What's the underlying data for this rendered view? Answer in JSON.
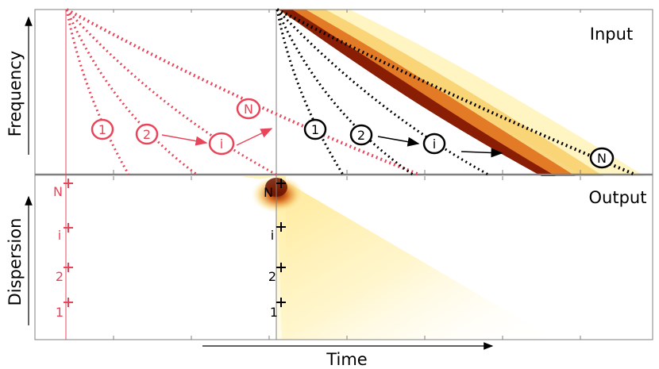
{
  "labels": {
    "input": "Input",
    "output": "Output",
    "frequency_axis": "Frequency",
    "dispersion_axis": "Dispersion",
    "time_axis": "Time"
  },
  "red_markers": [
    "1",
    "2",
    "i",
    "N"
  ],
  "black_markers": [
    "1",
    "2",
    "i",
    "N"
  ],
  "red_dispersion_labels": [
    "N",
    "i",
    "2",
    "1"
  ],
  "black_dispersion_labels": [
    "N",
    "i",
    "2",
    "1"
  ],
  "colors": {
    "red": "#e8455a",
    "black": "#000000",
    "axis": "#808080",
    "heat_dark": "#5a0c00",
    "heat_mid": "#d9641c",
    "heat_light": "#fff6c8"
  }
}
